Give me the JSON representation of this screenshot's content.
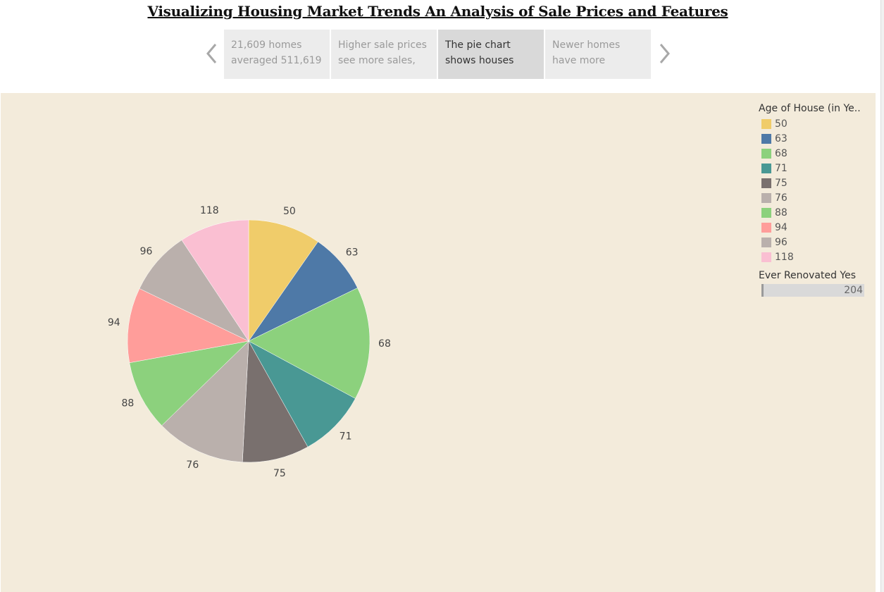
{
  "title": "Visualizing Housing Market Trends An Analysis of Sale Prices and Features",
  "story": {
    "points": [
      {
        "line1": "21,609 homes",
        "line2": "averaged 511,619",
        "active": false
      },
      {
        "line1": "Higher sale prices",
        "line2": "see more sales,",
        "active": false
      },
      {
        "line1": "The pie chart",
        "line2": "shows houses",
        "active": true
      },
      {
        "line1": "Newer homes",
        "line2": "have more",
        "active": false
      }
    ]
  },
  "legend": {
    "title": "Age of House (in Ye..",
    "items": [
      {
        "label": "50",
        "color": "#f0cc6a"
      },
      {
        "label": "63",
        "color": "#4e79a7"
      },
      {
        "label": "68",
        "color": "#8cd17d"
      },
      {
        "label": "71",
        "color": "#499894"
      },
      {
        "label": "75",
        "color": "#79706e"
      },
      {
        "label": "76",
        "color": "#bab0ac"
      },
      {
        "label": "88",
        "color": "#8cd17d"
      },
      {
        "label": "94",
        "color": "#ff9d9a"
      },
      {
        "label": "96",
        "color": "#bab0ac"
      },
      {
        "label": "118",
        "color": "#fabfd2"
      }
    ]
  },
  "filter": {
    "title": "Ever Renovated Yes",
    "value": "204"
  },
  "chart_data": {
    "type": "pie",
    "categories": [
      "50",
      "63",
      "68",
      "71",
      "75",
      "76",
      "88",
      "94",
      "96",
      "118"
    ],
    "values": [
      10.1,
      8.4,
      15.7,
      9.4,
      9.3,
      12.4,
      9.8,
      10.4,
      8.9,
      9.7
    ],
    "colors": [
      "#f0cc6a",
      "#4e79a7",
      "#8cd17d",
      "#499894",
      "#79706e",
      "#bab0ac",
      "#8cd17d",
      "#ff9d9a",
      "#bab0ac",
      "#fabfd2"
    ],
    "legend": "right",
    "data_labels": true
  }
}
